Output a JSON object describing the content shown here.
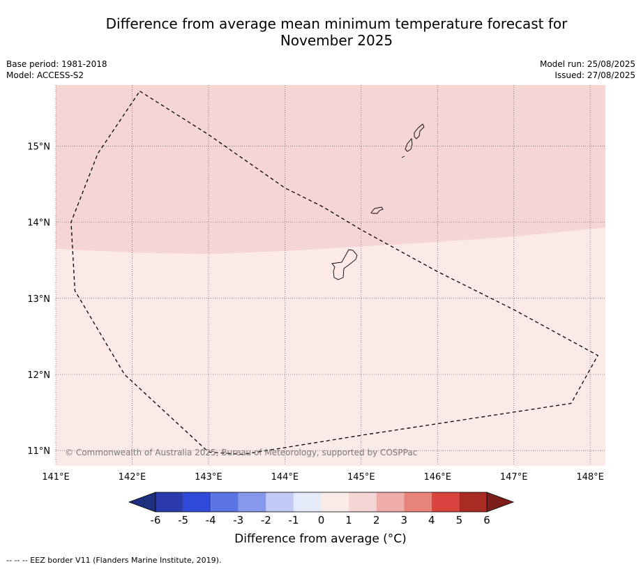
{
  "title_line1": "Difference from average mean minimum temperature forecast for",
  "title_line2": "November 2025",
  "base_period": "Base period: 1981-2018",
  "model": "Model: ACCESS-S2",
  "model_run": "Model run: 25/08/2025",
  "issued": "Issued: 27/08/2025",
  "copyright": "© Commonwealth of Australia 2025, Bureau of Meteorology, supported by COSPPac",
  "colorbar_label": "Difference from average (°C)",
  "footer": "--  --  -- EEZ border V11 (Flanders Marine Institute, 2019).",
  "map": {
    "lon_range": [
      141.0,
      148.2
    ],
    "lat_range": [
      10.8,
      15.8
    ],
    "lon_ticks": [
      {
        "value": 141,
        "label": "141°E"
      },
      {
        "value": 142,
        "label": "142°E"
      },
      {
        "value": 143,
        "label": "143°E"
      },
      {
        "value": 144,
        "label": "144°E"
      },
      {
        "value": 145,
        "label": "145°E"
      },
      {
        "value": 146,
        "label": "146°E"
      },
      {
        "value": 147,
        "label": "147°E"
      },
      {
        "value": 148,
        "label": "148°E"
      }
    ],
    "lat_ticks": [
      {
        "value": 15,
        "label": "15°N"
      },
      {
        "value": 14,
        "label": "14°N"
      },
      {
        "value": 13,
        "label": "13°N"
      },
      {
        "value": 12,
        "label": "12°N"
      },
      {
        "value": 11,
        "label": "11°N"
      }
    ],
    "anomaly_regions": [
      {
        "category": "1 to 2",
        "color": "#f5d6d4",
        "boundary": [
          [
            141.0,
            13.65
          ],
          [
            142.0,
            13.6
          ],
          [
            143.0,
            13.58
          ],
          [
            144.0,
            13.62
          ],
          [
            145.0,
            13.68
          ],
          [
            146.0,
            13.74
          ],
          [
            147.0,
            13.81
          ],
          [
            148.2,
            13.93
          ]
        ]
      },
      {
        "category": "0 to 1",
        "color": "#fbeae8"
      }
    ],
    "eez_border": [
      [
        142.1,
        15.72
      ],
      [
        143.0,
        15.15
      ],
      [
        144.0,
        14.45
      ],
      [
        144.5,
        14.2
      ],
      [
        145.0,
        13.9
      ],
      [
        146.0,
        13.35
      ],
      [
        147.0,
        12.85
      ],
      [
        148.1,
        12.25
      ],
      [
        147.75,
        11.62
      ],
      [
        145.0,
        11.2
      ],
      [
        143.45,
        10.95
      ],
      [
        143.0,
        10.98
      ],
      [
        141.9,
        12.0
      ],
      [
        141.25,
        13.1
      ],
      [
        141.2,
        14.0
      ],
      [
        141.55,
        14.9
      ],
      [
        142.1,
        15.72
      ]
    ]
  },
  "colorbar": {
    "ticks": [
      "-6",
      "-5",
      "-4",
      "-3",
      "-2",
      "-1",
      "0",
      "1",
      "2",
      "3",
      "4",
      "5",
      "6"
    ],
    "under_color": "#1e2f7d",
    "over_color": "#7d1e1c",
    "bin_colors": [
      "#2a3cad",
      "#2f4ad9",
      "#5b74e3",
      "#8598ea",
      "#c2c9f3",
      "#e6ebfb",
      "#fbeae8",
      "#f5d6d4",
      "#eeada9",
      "#e8837c",
      "#d9453e",
      "#a92b23"
    ]
  }
}
